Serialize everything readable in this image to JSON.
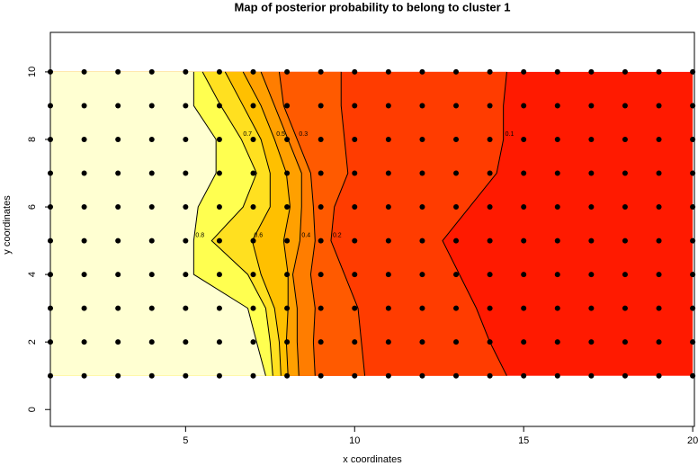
{
  "chart_data": {
    "type": "contour",
    "title": "Map of posterior probability to belong to cluster  1",
    "x_label": "x coordinates",
    "y_label": "y coordinates",
    "xlim": [
      1,
      20.05
    ],
    "ylim": [
      -0.5,
      11.17
    ],
    "xticks": [
      5,
      10,
      15,
      20
    ],
    "yticks": [
      0,
      2,
      4,
      6,
      8,
      10
    ],
    "low_color": "#ff1a00",
    "rows": [
      1,
      2,
      3,
      4,
      5,
      6,
      7,
      8,
      9,
      10
    ],
    "contours": [
      {
        "level": 0.1,
        "color": "#ff3c00",
        "x": [
          14.5,
          14.0,
          13.6,
          13.1,
          12.6,
          13.4,
          14.2,
          14.4,
          14.4,
          14.5
        ]
      },
      {
        "level": 0.2,
        "color": "#ff5a00",
        "x": [
          10.3,
          10.2,
          10.1,
          9.7,
          9.3,
          9.4,
          9.8,
          9.7,
          9.6,
          9.6
        ]
      },
      {
        "level": 0.3,
        "color": "#ff7d00",
        "x": [
          8.83,
          8.78,
          8.83,
          8.7,
          8.83,
          8.78,
          8.7,
          8.3,
          7.9,
          7.77
        ]
      },
      {
        "level": 0.4,
        "color": "#ffa000",
        "x": [
          8.35,
          8.3,
          8.3,
          8.17,
          8.38,
          8.43,
          8.43,
          8.03,
          7.63,
          7.23
        ]
      },
      {
        "level": 0.5,
        "color": "#ffc000",
        "x": [
          8.03,
          7.98,
          8.03,
          8.03,
          7.9,
          8.09,
          7.98,
          7.63,
          7.23,
          6.7
        ]
      },
      {
        "level": 0.6,
        "color": "#ffe020",
        "x": [
          7.82,
          7.77,
          7.63,
          7.23,
          6.97,
          7.5,
          7.5,
          7.23,
          6.7,
          6.17
        ]
      },
      {
        "level": 0.7,
        "color": "#ffff50",
        "x": [
          7.58,
          7.5,
          7.37,
          6.84,
          5.77,
          6.7,
          7.1,
          6.65,
          6.04,
          5.5
        ]
      },
      {
        "level": 0.8,
        "color": "#ffffd2",
        "x": [
          7.37,
          7.1,
          6.84,
          5.24,
          5.24,
          5.37,
          5.9,
          5.9,
          5.24,
          5.24
        ]
      }
    ],
    "points": {
      "x": [
        1,
        2,
        3,
        4,
        5,
        6,
        7,
        8,
        9,
        10,
        11,
        12,
        13,
        14,
        15,
        16,
        17,
        18,
        19,
        20
      ],
      "y": [
        1,
        2,
        3,
        4,
        5,
        6,
        7,
        8,
        9,
        10
      ]
    }
  }
}
